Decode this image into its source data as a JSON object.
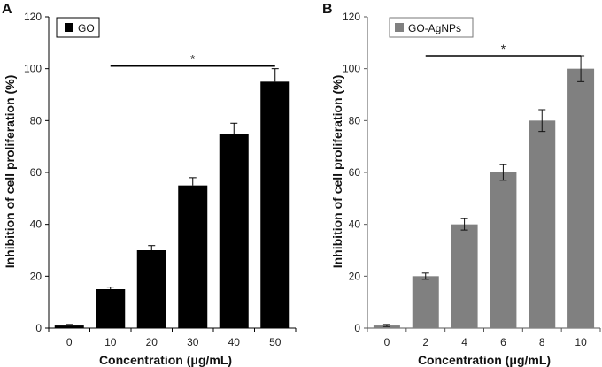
{
  "chart_data": [
    {
      "type": "bar",
      "panel_label": "A",
      "legend": "GO",
      "color": "#000000",
      "categories": [
        "0",
        "10",
        "20",
        "30",
        "40",
        "50"
      ],
      "values": [
        1,
        15,
        30,
        55,
        75,
        95
      ],
      "errors": [
        0.4,
        0.8,
        1.8,
        3,
        4,
        5
      ],
      "error_style": "upper",
      "xlabel": "Concentration (μg/mL)",
      "ylabel": "Inhibition of cell proliferation (%)",
      "ylim": [
        0,
        120
      ],
      "yticks": [
        "0",
        "20",
        "40",
        "60",
        "80",
        "100",
        "120"
      ],
      "significance": {
        "from": "10",
        "to": "50",
        "label": "*",
        "level": 101
      }
    },
    {
      "type": "bar",
      "panel_label": "B",
      "legend": "GO-AgNPs",
      "color": "#808080",
      "categories": [
        "0",
        "2",
        "4",
        "6",
        "8",
        "10"
      ],
      "values": [
        1,
        20,
        40,
        60,
        80,
        100
      ],
      "errors": [
        0.4,
        1.2,
        2.2,
        3,
        4.2,
        5
      ],
      "error_style": "both",
      "xlabel": "Concentration (μg/mL)",
      "ylabel": "Inhibition of cell proliferation (%)",
      "ylim": [
        0,
        120
      ],
      "yticks": [
        "0",
        "20",
        "40",
        "60",
        "80",
        "100",
        "120"
      ],
      "significance": {
        "from": "2",
        "to": "10",
        "label": "*",
        "level": 105
      }
    }
  ]
}
